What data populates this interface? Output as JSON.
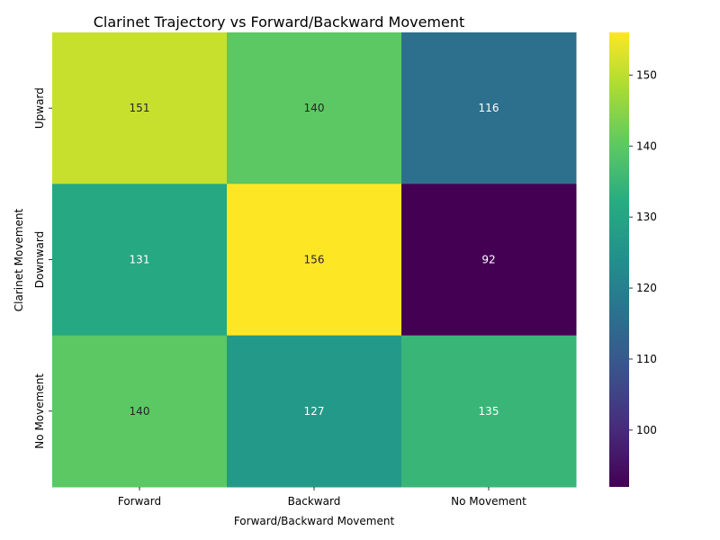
{
  "chart_data": {
    "type": "heatmap",
    "title": "Clarinet Trajectory vs Forward/Backward Movement",
    "xlabel": "Forward/Backward Movement",
    "ylabel": "Clarinet Movement",
    "x_categories": [
      "Forward",
      "Backward",
      "No Movement"
    ],
    "y_categories": [
      "Upward",
      "Downward",
      "No Movement"
    ],
    "values": [
      [
        151,
        140,
        116
      ],
      [
        131,
        156,
        92
      ],
      [
        140,
        127,
        135
      ]
    ],
    "colormap": "viridis",
    "color_range": [
      92,
      156
    ],
    "colorbar_ticks": [
      100,
      110,
      120,
      130,
      140,
      150
    ],
    "annotations": true,
    "grid": false
  }
}
